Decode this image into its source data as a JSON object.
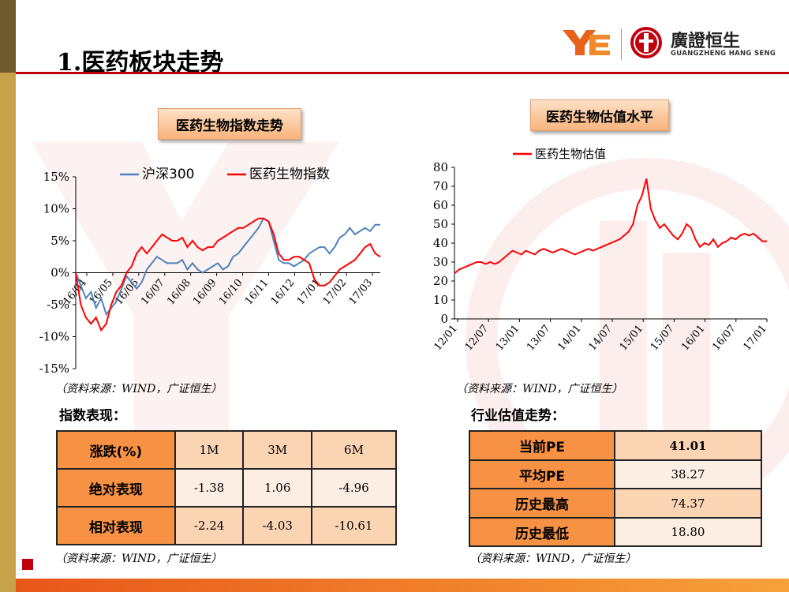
{
  "header": {
    "title": "1.医药板块走势",
    "logo_cn": "廣證恒生",
    "logo_en": "GUANGZHENG HANG SENG"
  },
  "left_chart": {
    "label": "医药生物指数走势",
    "source": "（资料来源：WIND，广证恒生）"
  },
  "right_chart": {
    "label": "医药生物估值水平",
    "source": "（资料来源：WIND，广证恒生）"
  },
  "index_table": {
    "heading": "指数表现：",
    "header": [
      "涨跌(%)",
      "1M",
      "3M",
      "6M"
    ],
    "rows": [
      {
        "label": "绝对表现",
        "values": [
          "-1.38",
          "1.06",
          "-4.96"
        ]
      },
      {
        "label": "相对表现",
        "values": [
          "-2.24",
          "-4.03",
          "-10.61"
        ]
      }
    ],
    "source": "（资料来源：WIND，广证恒生）"
  },
  "pe_table": {
    "heading": "行业估值走势：",
    "rows": [
      {
        "label": "当前PE",
        "value": "41.01"
      },
      {
        "label": "平均PE",
        "value": "38.27"
      },
      {
        "label": "历史最高",
        "value": "74.37"
      },
      {
        "label": "历史最低",
        "value": "18.80"
      }
    ],
    "source": "（资料来源：WIND，广证恒生）"
  },
  "colors": {
    "hs300": "#4f81bd",
    "pharma": "#ff0000",
    "accent": "#c0000c",
    "table_header": "#f79245",
    "table_value": "#fbd4b4"
  },
  "chart_data": [
    {
      "type": "line",
      "title": "",
      "xlabel": "",
      "ylabel": "",
      "ylim": [
        -15,
        15
      ],
      "yticks": [
        "15%",
        "10%",
        "5%",
        "0%",
        "-5%",
        "-10%",
        "-15%"
      ],
      "ytick_values": [
        15,
        10,
        5,
        0,
        -5,
        -10,
        -15
      ],
      "xticks": [
        "16/04",
        "16/05",
        "16/06",
        "16/07",
        "16/08",
        "16/09",
        "16/10",
        "16/11",
        "16/12",
        "17/01",
        "17/02",
        "17/03"
      ],
      "legend": "top",
      "grid": false,
      "series": [
        {
          "name": "沪深300",
          "color": "#4f81bd",
          "values": [
            0,
            -2,
            -4,
            -3,
            -5.5,
            -4,
            -6.5,
            -5.5,
            -4.5,
            -2.5,
            -0.5,
            -1.5,
            -2.5,
            -1.5,
            0.5,
            1.5,
            2.5,
            2,
            1.5,
            1.5,
            1.5,
            2,
            0.5,
            1.5,
            0.5,
            0,
            0.5,
            1,
            1.5,
            0.5,
            1,
            2.5,
            3,
            4,
            5,
            6,
            7,
            8.5,
            8,
            5,
            2,
            1.5,
            1.5,
            1,
            1.5,
            2,
            3,
            3.5,
            4,
            4,
            3,
            4,
            5.5,
            6,
            7,
            6,
            6.5,
            7,
            6.5,
            7.5,
            7.5
          ]
        },
        {
          "name": "医药生物指数",
          "color": "#ff0000",
          "values": [
            0,
            -5,
            -7,
            -8,
            -7,
            -9,
            -8,
            -5,
            -3,
            -2,
            0,
            1,
            3,
            4,
            3,
            4,
            5,
            6,
            5.5,
            5,
            5,
            5.5,
            4,
            5,
            4,
            3.5,
            4,
            4,
            5,
            5.5,
            6,
            6.5,
            7,
            7,
            7.5,
            8,
            8.5,
            8.5,
            8,
            6,
            3,
            2,
            2,
            2.5,
            2.5,
            2,
            1.5,
            -1,
            -2,
            -2,
            -1.5,
            -0.5,
            0.5,
            1,
            1.5,
            2,
            3,
            4,
            4.5,
            3,
            2.5
          ]
        }
      ]
    },
    {
      "type": "line",
      "title": "",
      "xlabel": "",
      "ylabel": "",
      "ylim": [
        0,
        80
      ],
      "yticks": [
        "0",
        "10",
        "20",
        "30",
        "40",
        "50",
        "60",
        "70",
        "80"
      ],
      "ytick_values": [
        0,
        10,
        20,
        30,
        40,
        50,
        60,
        70,
        80
      ],
      "xticks": [
        "12/01",
        "12/07",
        "13/01",
        "13/07",
        "14/01",
        "14/07",
        "15/01",
        "15/07",
        "16/01",
        "16/07",
        "17/01"
      ],
      "legend": "top",
      "grid": false,
      "series": [
        {
          "name": "医药生物估值",
          "color": "#ff0000",
          "values": [
            24,
            26,
            27,
            28,
            29,
            30,
            30,
            29,
            30,
            29,
            30,
            32,
            34,
            36,
            35,
            34,
            36,
            35,
            34,
            36,
            37,
            36,
            35,
            36,
            37,
            36,
            35,
            34,
            35,
            36,
            37,
            36,
            37,
            38,
            39,
            40,
            41,
            42,
            44,
            46,
            50,
            60,
            65,
            74,
            58,
            52,
            48,
            50,
            47,
            44,
            42,
            45,
            50,
            48,
            42,
            38,
            40,
            39,
            42,
            38,
            40,
            41,
            43,
            42,
            44,
            45,
            44,
            45,
            43,
            41,
            41
          ]
        }
      ]
    }
  ]
}
